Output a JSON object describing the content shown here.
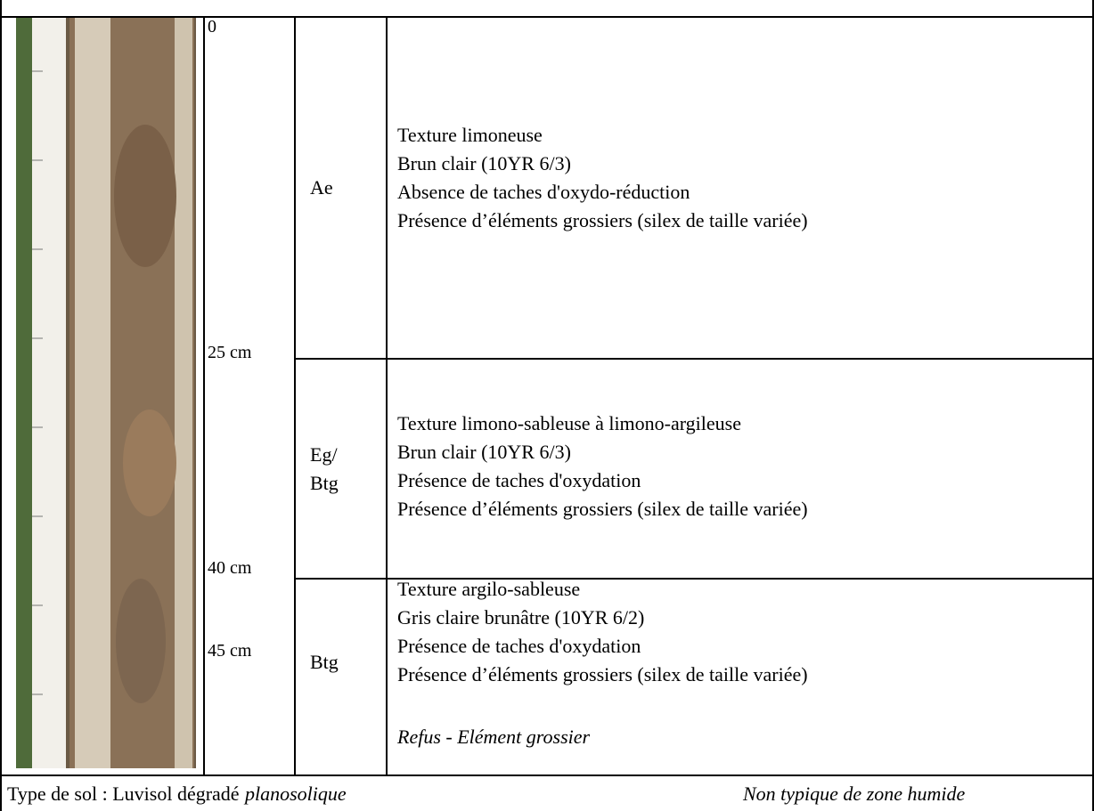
{
  "depth_labels": [
    "0",
    "25 cm",
    "40 cm",
    "45 cm"
  ],
  "horizons": [
    {
      "name": [
        "Ae"
      ],
      "lines": [
        "Texture limoneuse",
        "Brun clair (10YR 6/3)",
        "Absence de taches d'oxydo-réduction",
        "Présence d’éléments grossiers (silex de taille variée)"
      ]
    },
    {
      "name": [
        "Eg/",
        "Btg"
      ],
      "lines": [
        "Texture limono-sableuse à limono-argileuse",
        "Brun clair (10YR 6/3)",
        "Présence de taches d'oxydation",
        "Présence d’éléments grossiers (silex de taille variée)"
      ]
    },
    {
      "name": [
        "Btg"
      ],
      "lines": [
        "Texture argilo-sableuse",
        "Gris claire brunâtre (10YR 6/2)",
        "Présence de taches d'oxydation",
        "Présence d’éléments grossiers (silex de taille variée)"
      ],
      "note": "Refus - Elément grossier"
    }
  ],
  "footer": {
    "soil_type": "Type de sol : Luvisol dégradé",
    "soil_type_qualifier": "planosolique",
    "zone_status": "Non typique de zone humide"
  }
}
